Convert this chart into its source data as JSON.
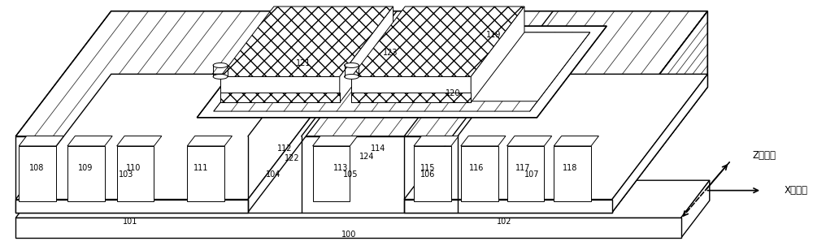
{
  "bg_color": "#ffffff",
  "line_color": "#000000",
  "fig_width": 10.0,
  "fig_height": 3.08,
  "dpi": 100,
  "n_body_stripes": 32,
  "n_frame_stripes": 18,
  "stripe_lw": 0.6,
  "main_lw": 1.0,
  "thin_lw": 0.7,
  "label_fs": 7.0,
  "axis_label_fs": 8.5
}
